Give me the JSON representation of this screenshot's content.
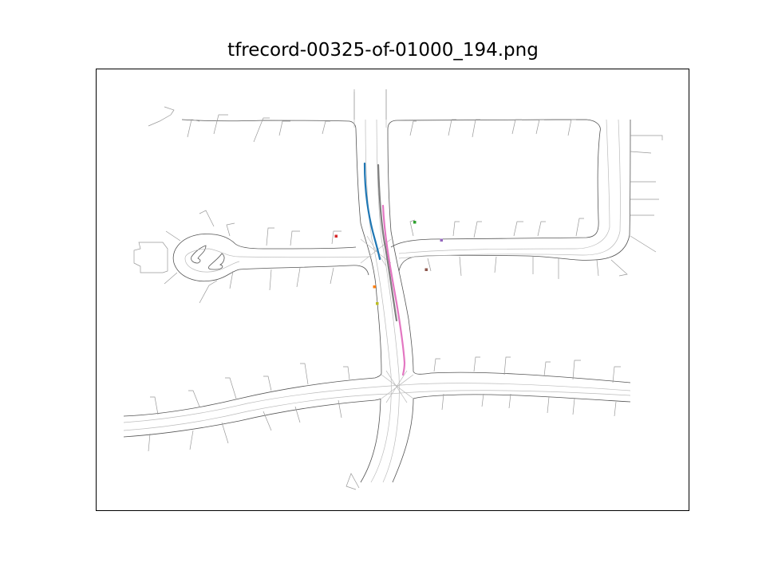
{
  "figure": {
    "title": "tfrecord-00325-of-01000_194.png"
  },
  "map": {
    "road_edge_color": "#555555",
    "lane_color": "#bbbbbb",
    "trajectories": [
      {
        "id": "traj-blue",
        "color": "#1f77b4"
      },
      {
        "id": "traj-gray",
        "color": "#7f7f7f"
      },
      {
        "id": "traj-pink",
        "color": "#e377c2"
      }
    ],
    "agents": [
      {
        "id": "agent-green",
        "color": "#2ca02c"
      },
      {
        "id": "agent-purple",
        "color": "#9467bd"
      },
      {
        "id": "agent-red",
        "color": "#d62728"
      },
      {
        "id": "agent-brown",
        "color": "#8c564b"
      },
      {
        "id": "agent-orange",
        "color": "#ff7f0e"
      },
      {
        "id": "agent-olive",
        "color": "#bcbd22"
      }
    ]
  }
}
